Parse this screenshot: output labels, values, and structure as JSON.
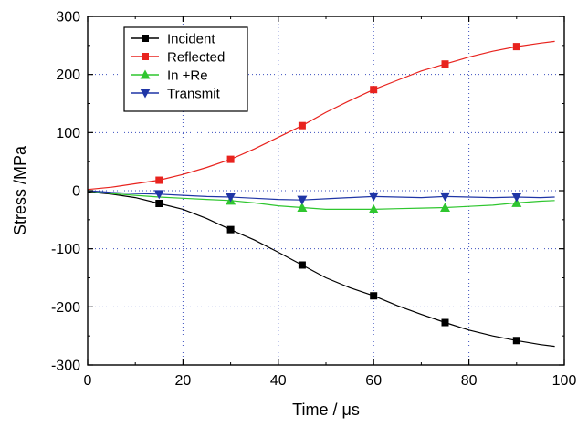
{
  "chart_data": {
    "type": "line",
    "xlabel": "Time / μs",
    "ylabel": "Stress /MPa",
    "xlim": [
      0,
      100
    ],
    "ylim": [
      -300,
      300
    ],
    "x_ticks": [
      0,
      20,
      40,
      60,
      80,
      100
    ],
    "y_ticks": [
      -300,
      -200,
      -100,
      0,
      100,
      200,
      300
    ],
    "x_tick_labels": [
      "0",
      "20",
      "40",
      "60",
      "80",
      "100"
    ],
    "y_tick_labels": [
      "-300",
      "-200",
      "-100",
      "0",
      "100",
      "200",
      "300"
    ],
    "grid": "dotted, at major ticks",
    "legend_position": "top-left",
    "series": [
      {
        "name": "Incident",
        "color": "#000000",
        "marker": "square",
        "points": [
          [
            0,
            -2
          ],
          [
            5,
            -6
          ],
          [
            10,
            -12
          ],
          [
            15,
            -22
          ],
          [
            20,
            -32
          ],
          [
            25,
            -48
          ],
          [
            30,
            -67
          ],
          [
            35,
            -85
          ],
          [
            40,
            -106
          ],
          [
            45,
            -128
          ],
          [
            50,
            -150
          ],
          [
            55,
            -167
          ],
          [
            60,
            -181
          ],
          [
            65,
            -198
          ],
          [
            70,
            -213
          ],
          [
            75,
            -227
          ],
          [
            80,
            -240
          ],
          [
            85,
            -250
          ],
          [
            90,
            -258
          ],
          [
            95,
            -265
          ],
          [
            98,
            -268
          ]
        ],
        "markers": [
          [
            15,
            -22
          ],
          [
            30,
            -67
          ],
          [
            45,
            -128
          ],
          [
            60,
            -181
          ],
          [
            75,
            -227
          ],
          [
            90,
            -258
          ]
        ]
      },
      {
        "name": "Reflected",
        "color": "#e8231e",
        "marker": "square",
        "points": [
          [
            0,
            2
          ],
          [
            5,
            6
          ],
          [
            10,
            12
          ],
          [
            15,
            18
          ],
          [
            20,
            28
          ],
          [
            25,
            40
          ],
          [
            30,
            54
          ],
          [
            35,
            72
          ],
          [
            40,
            92
          ],
          [
            45,
            112
          ],
          [
            50,
            135
          ],
          [
            55,
            155
          ],
          [
            60,
            174
          ],
          [
            65,
            190
          ],
          [
            70,
            206
          ],
          [
            75,
            218
          ],
          [
            80,
            230
          ],
          [
            85,
            240
          ],
          [
            90,
            248
          ],
          [
            95,
            254
          ],
          [
            98,
            257
          ]
        ],
        "markers": [
          [
            15,
            18
          ],
          [
            30,
            54
          ],
          [
            45,
            112
          ],
          [
            60,
            174
          ],
          [
            75,
            218
          ],
          [
            90,
            248
          ]
        ]
      },
      {
        "name": "In +Re",
        "color": "#2fc62f",
        "marker": "triangle-up",
        "points": [
          [
            0,
            0
          ],
          [
            5,
            -5
          ],
          [
            10,
            -8
          ],
          [
            15,
            -11
          ],
          [
            20,
            -13
          ],
          [
            25,
            -15
          ],
          [
            30,
            -17
          ],
          [
            35,
            -21
          ],
          [
            40,
            -26
          ],
          [
            45,
            -29
          ],
          [
            50,
            -32
          ],
          [
            55,
            -32
          ],
          [
            60,
            -32
          ],
          [
            65,
            -31
          ],
          [
            70,
            -30
          ],
          [
            75,
            -29
          ],
          [
            80,
            -27
          ],
          [
            85,
            -25
          ],
          [
            90,
            -21
          ],
          [
            95,
            -18
          ],
          [
            98,
            -17
          ]
        ],
        "markers": [
          [
            30,
            -17
          ],
          [
            45,
            -29
          ],
          [
            60,
            -32
          ],
          [
            75,
            -29
          ],
          [
            90,
            -21
          ]
        ]
      },
      {
        "name": "Transmit",
        "color": "#1f35a6",
        "marker": "triangle-down",
        "points": [
          [
            0,
            0
          ],
          [
            5,
            -3
          ],
          [
            10,
            -5
          ],
          [
            15,
            -6
          ],
          [
            20,
            -8
          ],
          [
            25,
            -10
          ],
          [
            30,
            -11
          ],
          [
            35,
            -13
          ],
          [
            40,
            -15
          ],
          [
            45,
            -16
          ],
          [
            50,
            -14
          ],
          [
            55,
            -12
          ],
          [
            60,
            -10
          ],
          [
            65,
            -11
          ],
          [
            70,
            -12
          ],
          [
            75,
            -10
          ],
          [
            80,
            -11
          ],
          [
            85,
            -12
          ],
          [
            90,
            -11
          ],
          [
            95,
            -12
          ],
          [
            98,
            -11
          ]
        ],
        "markers": [
          [
            15,
            -6
          ],
          [
            30,
            -11
          ],
          [
            45,
            -16
          ],
          [
            60,
            -10
          ],
          [
            75,
            -10
          ],
          [
            90,
            -11
          ]
        ]
      }
    ]
  }
}
